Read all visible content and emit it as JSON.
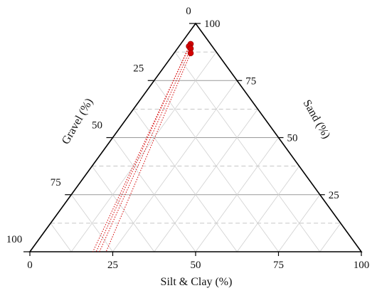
{
  "chart_data": {
    "type": "scatter",
    "subtype": "ternary",
    "axes": {
      "bottom": {
        "label": "Silt & Clay (%)",
        "ticks": [
          0,
          25,
          50,
          75,
          100
        ],
        "range": [
          0,
          100
        ]
      },
      "left": {
        "label": "Gravel (%)",
        "ticks": [
          0,
          25,
          50,
          75,
          100
        ],
        "range": [
          0,
          100
        ]
      },
      "right": {
        "label": "Sand (%)",
        "ticks": [
          25,
          50,
          75,
          100
        ],
        "range": [
          0,
          100
        ]
      }
    },
    "grid": {
      "major": true,
      "major_style": "solid",
      "minor": true,
      "minor_style": "dashed",
      "diagonal_mesh": true
    },
    "series": [
      {
        "marker_color": "#d40000",
        "line_style": "dotted",
        "points": [
          {
            "sand": 91,
            "gravel": 6,
            "silt_clay": 3
          },
          {
            "sand": 90,
            "gravel": 7,
            "silt_clay": 3
          },
          {
            "sand": 89,
            "gravel": 7,
            "silt_clay": 4
          },
          {
            "sand": 87,
            "gravel": 8,
            "silt_clay": 5
          }
        ],
        "guide_lines": [
          {
            "from": {
              "sand": 91,
              "gravel": 6,
              "silt_clay": 3
            },
            "to": {
              "sand": 0,
              "gravel": 81,
              "silt_clay": 19
            }
          },
          {
            "from": {
              "sand": 90,
              "gravel": 7,
              "silt_clay": 3
            },
            "to": {
              "sand": 0,
              "gravel": 80,
              "silt_clay": 20
            }
          },
          {
            "from": {
              "sand": 89,
              "gravel": 7,
              "silt_clay": 4
            },
            "to": {
              "sand": 0,
              "gravel": 79,
              "silt_clay": 21
            }
          },
          {
            "from": {
              "sand": 87,
              "gravel": 8,
              "silt_clay": 5
            },
            "to": {
              "sand": 0,
              "gravel": 77,
              "silt_clay": 23
            }
          }
        ]
      }
    ]
  }
}
